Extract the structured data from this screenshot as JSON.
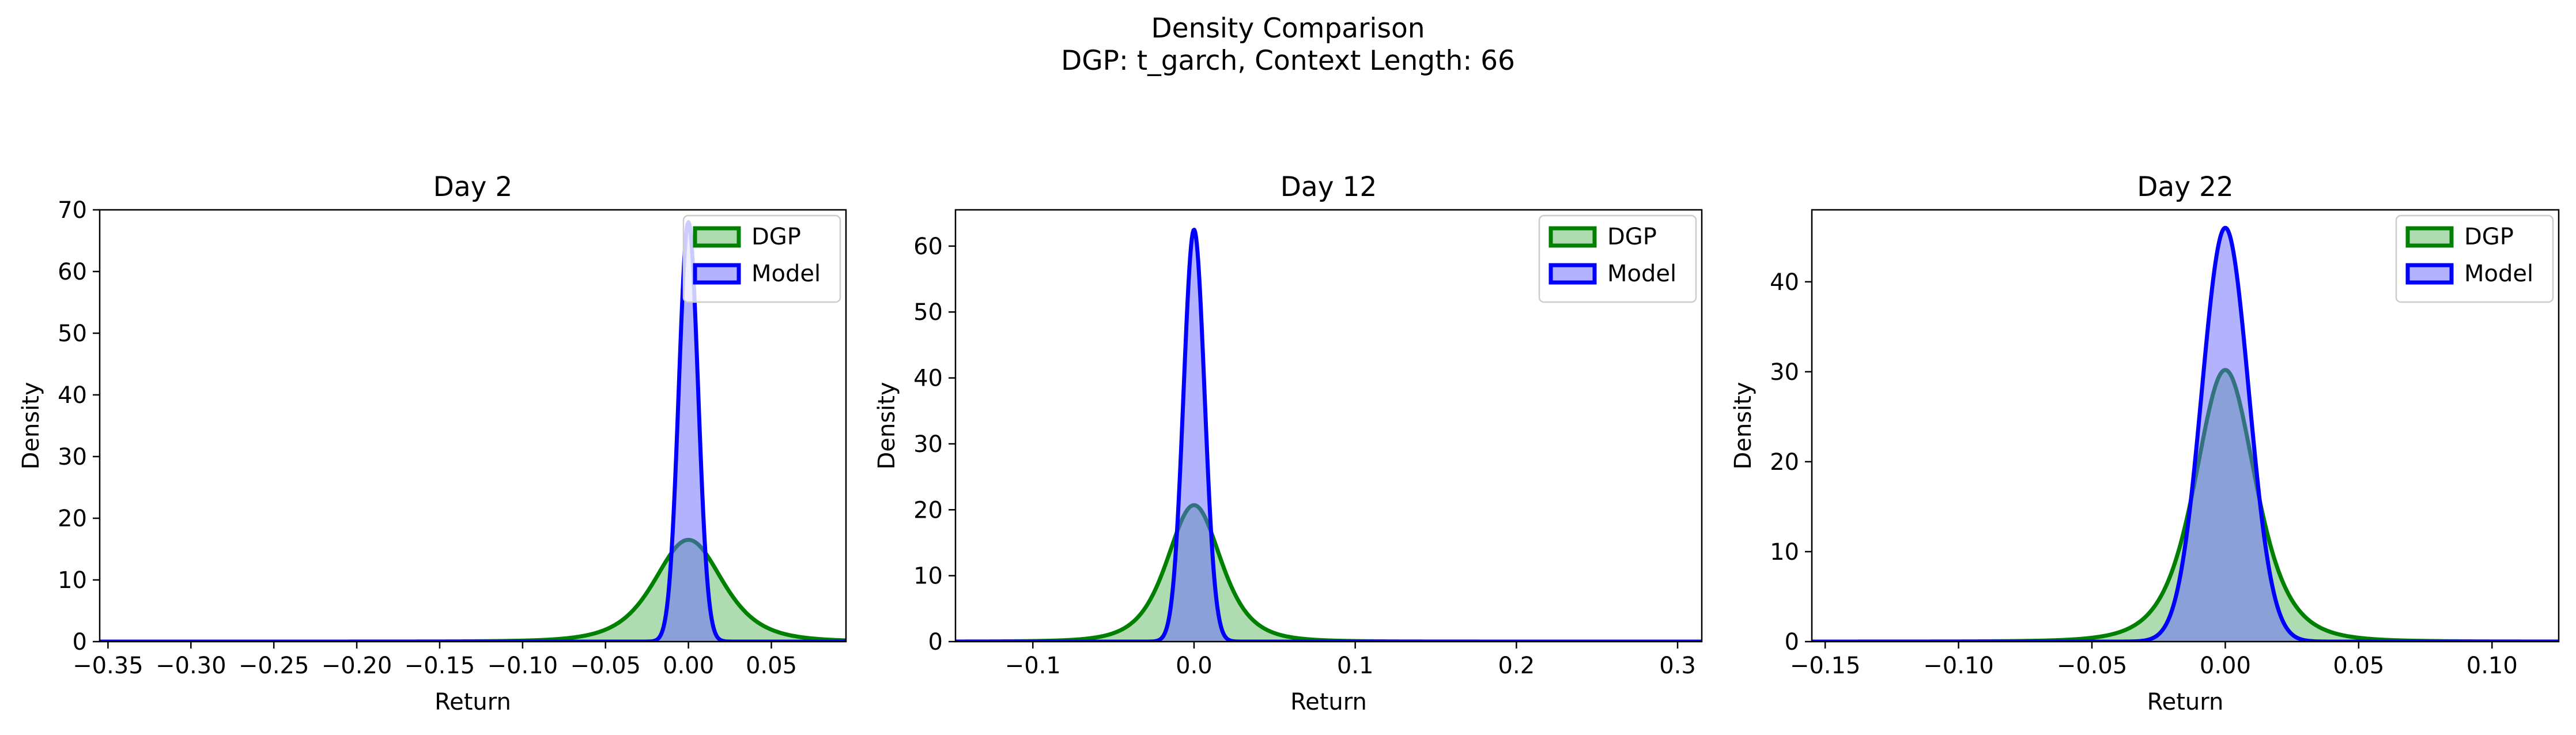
{
  "figure": {
    "title_line1": "Density Comparison",
    "title_line2": "DGP: t_garch, Context Length: 66"
  },
  "colors": {
    "dgp_line": "#008000",
    "dgp_fill": "#4caf50",
    "model_line": "#0000ff",
    "model_fill": "#6666ff"
  },
  "chart_data": [
    {
      "type": "area",
      "title": "Day 2",
      "xlabel": "Return",
      "ylabel": "Density",
      "xlim": [
        -0.355,
        0.095
      ],
      "ylim": [
        0,
        70
      ],
      "xticks": [
        -0.35,
        -0.3,
        -0.25,
        -0.2,
        -0.15,
        -0.1,
        -0.05,
        0.0,
        0.05
      ],
      "xtick_labels": [
        "−0.35",
        "−0.30",
        "−0.25",
        "−0.20",
        "−0.15",
        "−0.10",
        "−0.05",
        "0.00",
        "0.05"
      ],
      "yticks": [
        0,
        10,
        20,
        30,
        40,
        50,
        60,
        70
      ],
      "legend": "top-right",
      "series": [
        {
          "name": "DGP",
          "shape": "t",
          "peak": 16.5,
          "center": 0.0,
          "scale": 0.0215,
          "df": 4
        },
        {
          "name": "Model",
          "shape": "gauss",
          "peak": 68,
          "center": 0.0,
          "scale": 0.0058
        }
      ]
    },
    {
      "type": "area",
      "title": "Day 12",
      "xlabel": "Return",
      "ylabel": "Density",
      "xlim": [
        -0.148,
        0.315
      ],
      "ylim": [
        0,
        65.5
      ],
      "xticks": [
        -0.1,
        0.0,
        0.1,
        0.2,
        0.3
      ],
      "xtick_labels": [
        "−0.1",
        "0.0",
        "0.1",
        "0.2",
        "0.3"
      ],
      "yticks": [
        0,
        10,
        20,
        30,
        40,
        50,
        60
      ],
      "legend": "top-right",
      "series": [
        {
          "name": "DGP",
          "shape": "t",
          "peak": 20.7,
          "center": 0.0,
          "scale": 0.0175,
          "df": 4
        },
        {
          "name": "Model",
          "shape": "gauss",
          "peak": 62.5,
          "center": 0.0,
          "scale": 0.0065
        }
      ]
    },
    {
      "type": "area",
      "title": "Day 22",
      "xlabel": "Return",
      "ylabel": "Density",
      "xlim": [
        -0.155,
        0.125
      ],
      "ylim": [
        0,
        48
      ],
      "xticks": [
        -0.15,
        -0.1,
        -0.05,
        0.0,
        0.05,
        0.1
      ],
      "xtick_labels": [
        "−0.15",
        "−0.10",
        "−0.05",
        "0.00",
        "0.05",
        "0.10"
      ],
      "yticks": [
        0,
        10,
        20,
        30,
        40
      ],
      "legend": "top-right",
      "series": [
        {
          "name": "DGP",
          "shape": "t",
          "peak": 30.2,
          "center": 0.0,
          "scale": 0.0118,
          "df": 4
        },
        {
          "name": "Model",
          "shape": "gauss",
          "peak": 46,
          "center": 0.0,
          "scale": 0.0088
        }
      ]
    }
  ]
}
